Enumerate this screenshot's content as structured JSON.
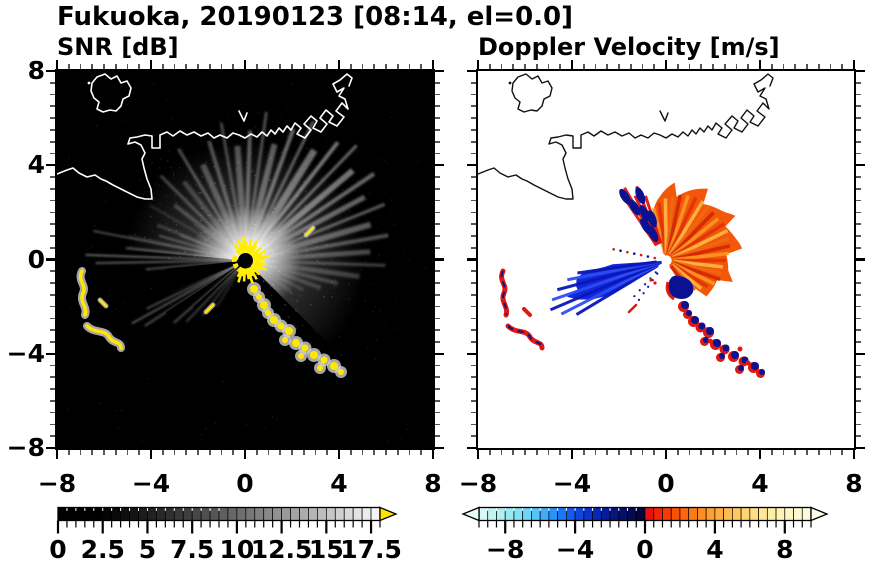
{
  "title": "Fukuoka, 20190123 [08:14, el=0.0]",
  "panels": {
    "snr": {
      "title": "SNR [dB]",
      "x_tick_labels": [
        "−8",
        "−4",
        "0",
        "4",
        "8"
      ],
      "x_tick_values": [
        -8,
        -4,
        0,
        4,
        8
      ],
      "y_tick_labels": [
        "8",
        "4",
        "0",
        "−4",
        "−8"
      ],
      "y_tick_values": [
        8,
        4,
        0,
        -4,
        -8
      ]
    },
    "doppler": {
      "title": "Doppler Velocity [m/s]",
      "x_tick_labels": [
        "−8",
        "−4",
        "0",
        "4",
        "8"
      ],
      "x_tick_values": [
        -8,
        -4,
        0,
        4,
        8
      ]
    }
  },
  "colors": {
    "snr_clutter_yellow": "#ffe800",
    "snr_overflow_arrow": "#ffe400",
    "doppler_positive_orange": "#f2570a",
    "doppler_negative_blue": "#1228dc",
    "doppler_navy": "#0a1292",
    "doppler_red": "#e01810",
    "coast_left": "#ffffff",
    "coast_right": "#111111",
    "background_left": "#000000",
    "background_right": "#ffffff"
  },
  "colorbars": {
    "snr": {
      "range": [
        0,
        18
      ],
      "cell_step": 0.5,
      "tick_labels": [
        "0",
        "2.5",
        "5",
        "7.5",
        "10",
        "12.5",
        "15",
        "17.5"
      ],
      "tick_values": [
        0,
        2.5,
        5,
        7.5,
        10,
        12.5,
        15,
        17.5
      ],
      "over_arrow_color": "#ffe400",
      "cells": [
        "#000000",
        "#000000",
        "#000000",
        "#000000",
        "#000000",
        "#040404",
        "#090909",
        "#0f0f0f",
        "#151515",
        "#1c1c1c",
        "#222222",
        "#292929",
        "#303030",
        "#383838",
        "#3f3f3f",
        "#474747",
        "#4f4f4f",
        "#565656",
        "#5f5f5f",
        "#676767",
        "#6f6f6f",
        "#777777",
        "#808080",
        "#888888",
        "#919191",
        "#9a9a9a",
        "#a3a3a3",
        "#acacac",
        "#b5b5b5",
        "#bebebe",
        "#c7c7c7",
        "#d0d0d0",
        "#d9d9d9",
        "#e3e3e3",
        "#ececec",
        "#f5f5f5"
      ]
    },
    "doppler": {
      "range": [
        -9.5,
        9.5
      ],
      "cell_step": 0.5,
      "tick_labels": [
        "−8",
        "−4",
        "0",
        "4",
        "8"
      ],
      "tick_values": [
        -8,
        -4,
        0,
        4,
        8
      ],
      "under_arrow_color": "#e6fcfb",
      "over_arrow_color": "#fdfce8",
      "cells": [
        "#d8f8f6",
        "#c4f4f2",
        "#aff0f0",
        "#99ebf2",
        "#83e3f5",
        "#6cd6f8",
        "#55c4fa",
        "#3fadfa",
        "#2a93f8",
        "#1c77f4",
        "#145cee",
        "#0f46e0",
        "#0b34cc",
        "#0827b4",
        "#061d9a",
        "#051581",
        "#040f68",
        "#030a50",
        "#02063a",
        "#e81010",
        "#f12408",
        "#f63c05",
        "#fa5205",
        "#fc670c",
        "#fd7b16",
        "#fe8e22",
        "#fe9f30",
        "#feae40",
        "#febc50",
        "#fec961",
        "#fed572",
        "#fedf83",
        "#fee895",
        "#feefa6",
        "#fef4b5",
        "#fef7c3",
        "#fdf9d0",
        "#fdfbdc"
      ]
    }
  },
  "chart_data": [
    {
      "type": "heatmap",
      "panel": "left",
      "suptitle": "Fukuoka, 20190123 [08:14, el=0.0]",
      "title": "SNR [dB]",
      "xlim": [
        -8,
        8
      ],
      "ylim": [
        -8,
        8
      ],
      "x_ticks": [
        -8,
        -4,
        0,
        4,
        8
      ],
      "y_ticks": [
        -8,
        -4,
        0,
        4,
        8
      ],
      "minor_tick_step": 0.5,
      "colorbar": {
        "range": [
          0,
          18
        ],
        "ticks": [
          0,
          2.5,
          5,
          7.5,
          10,
          12.5,
          15,
          17.5
        ],
        "palette": "black to white grayscale with yellow overflow arrow"
      },
      "features": [
        "radar at origin (0,0) with bright white radial echo fan over N through E sectors out to radius ~5 km",
        "saturated yellow ground-clutter ring immediately around the origin",
        "yellow clutter chain running SE from origin to about (3.5,-4)",
        "isolated yellow clutter squiggles near (-7,-1.5) and (-6.5,-3.5)",
        "thin bright streaks toward W and SW, dark no-data wedge toward WSW",
        "white coastline of Hakata Bay: island near (-6,6.5), harbor piers near (2..4,5..7)"
      ]
    },
    {
      "type": "heatmap",
      "panel": "right",
      "suptitle": "Fukuoka, 20190123 [08:14, el=0.0]",
      "title": "Doppler Velocity [m/s]",
      "xlim": [
        -8,
        8
      ],
      "ylim": [
        -8,
        8
      ],
      "x_ticks": [
        -8,
        -4,
        0,
        4,
        8
      ],
      "y_ticks": [
        -8,
        -4,
        0,
        4,
        8
      ],
      "minor_tick_step": 0.5,
      "colorbar": {
        "range": [
          -9.5,
          9.5
        ],
        "ticks": [
          -8,
          -4,
          0,
          4,
          8
        ],
        "palette": "diverging: pale cyan → blue → dark navy (negative) | red → orange → pale yellow (positive), overflow arrows both ends"
      },
      "features": [
        "orange/red positive-velocity fan N through E of origin out to radius ~3 km with ragged edge",
        "dark navy patches along NW edge of the orange fan",
        "solid blue negative-velocity wedge pointing W-SW from origin, radius ~4 km with streaky fingers",
        "navy + red clutter chain running SE from origin to about (3.5,-4)",
        "red/navy clutter squiggles near (-7,-1.5) and (-6.5,-3.5)",
        "black coastline, white background"
      ]
    }
  ]
}
